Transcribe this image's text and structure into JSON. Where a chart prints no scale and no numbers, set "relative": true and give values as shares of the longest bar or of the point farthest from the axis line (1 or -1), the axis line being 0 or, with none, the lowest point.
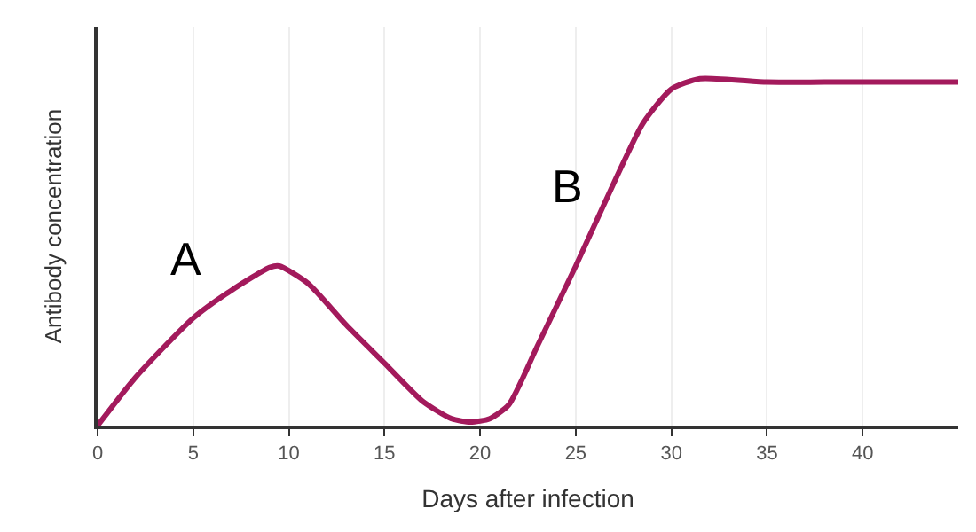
{
  "chart_data": {
    "type": "line",
    "relative": true,
    "xlabel": "Days after infection",
    "ylabel": "Antibody concentration",
    "x": [
      0,
      2,
      5,
      7,
      9,
      9.5,
      11,
      13,
      15,
      17,
      18.5,
      19.5,
      20.5,
      21.5,
      23,
      25,
      27,
      28.5,
      30,
      31.5,
      35,
      38,
      41,
      45
    ],
    "series": [
      {
        "color": "#a31a5c",
        "values": [
          0,
          0.14,
          0.31,
          0.39,
          0.456,
          0.46,
          0.41,
          0.29,
          0.18,
          0.07,
          0.02,
          0.01,
          0.02,
          0.06,
          0.23,
          0.46,
          0.7,
          0.87,
          0.97,
          1.0,
          0.99,
          0.99,
          0.99,
          0.99
        ]
      }
    ],
    "xlim": [
      0,
      45
    ],
    "xticks": [
      0,
      5,
      10,
      15,
      20,
      25,
      30,
      35,
      40
    ],
    "grid": "x",
    "tick_labels": "x",
    "marker": "none",
    "line_style": "solid",
    "annotations": [
      "A",
      "B"
    ]
  }
}
